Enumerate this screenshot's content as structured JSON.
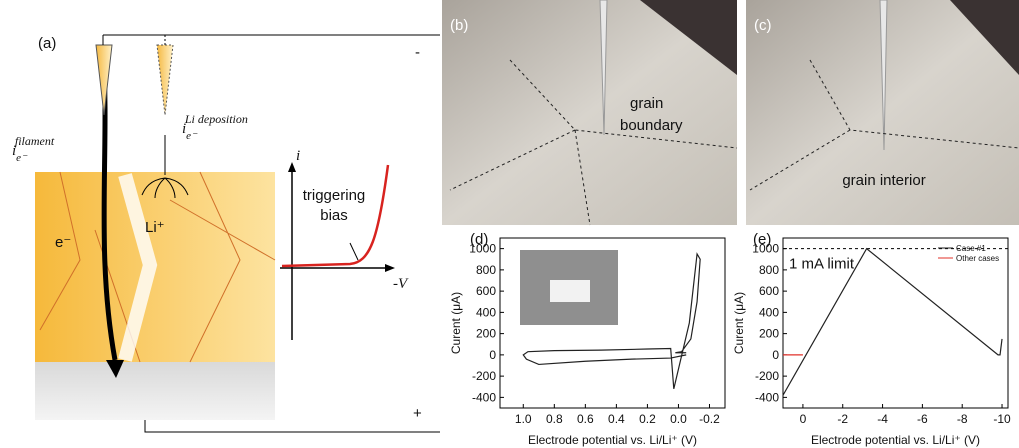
{
  "panel_a": {
    "label": "(a)",
    "current_symbol": "i",
    "electron_subscript": "e⁻",
    "filament_superscript": "filament",
    "deposition_superscript": "Li deposition",
    "electron": "e⁻",
    "lithium_ion": "Li⁺",
    "negative_terminal": "-",
    "positive_terminal": "+",
    "inset_y_label": "i",
    "inset_x_label": "-V",
    "inset_annotation_lines": [
      "triggering",
      "bias"
    ]
  },
  "panel_b": {
    "label": "(b)",
    "annotation_lines": [
      "grain",
      "boundary"
    ]
  },
  "panel_c": {
    "label": "(c)",
    "annotation": "grain interior"
  },
  "chart_data": [
    {
      "type": "line",
      "label": "(d)",
      "x_label": "Electrode potential vs. Li/Li⁺ (V)",
      "y_label": "Curent (μA)",
      "xlim": [
        1.15,
        -0.3
      ],
      "ylim": [
        -500,
        1100
      ],
      "xticks": [
        {
          "value": 1,
          "label": "1.0"
        },
        0.8,
        0.6,
        0.4,
        0.2,
        {
          "value": 0,
          "label": "0.0"
        },
        -0.2
      ],
      "yticks": [
        -400,
        -200,
        0,
        200,
        400,
        600,
        800,
        1000
      ],
      "series": [
        {
          "color": "#222222",
          "x": [
            -0.05,
            0.05,
            0.3,
            0.6,
            0.9,
            0.98,
            1.0,
            0.97,
            0.8,
            0.5,
            0.2,
            0.05,
            0.03,
            -0.07,
            -0.12,
            -0.14,
            -0.12,
            -0.08,
            -0.02,
            0.02,
            -0.05
          ],
          "values": [
            0,
            -30,
            -40,
            -60,
            -90,
            -40,
            0,
            30,
            40,
            45,
            55,
            60,
            -320,
            300,
            950,
            900,
            500,
            150,
            30,
            20,
            20
          ]
        }
      ]
    },
    {
      "type": "line",
      "label": "(e)",
      "x_label": "Electrode potential vs. Li/Li⁺ (V)",
      "y_label": "Curent (μA)",
      "xlim": [
        1,
        -10.3
      ],
      "ylim": [
        -500,
        1100
      ],
      "xticks": [
        0,
        -2,
        -4,
        -6,
        -8,
        -10
      ],
      "yticks": [
        -400,
        -200,
        0,
        200,
        400,
        600,
        800,
        1000
      ],
      "limit_line": 1000,
      "annotation": "1 mA limit",
      "series": [
        {
          "name": "Case #1",
          "color": "#222222",
          "x": [
            1,
            -3.2,
            -9.8,
            -9.9,
            -10
          ],
          "values": [
            -380,
            1000,
            0,
            0,
            150
          ]
        },
        {
          "name": "Other cases",
          "color": "#e0302a",
          "x": [
            1,
            0
          ],
          "values": [
            0,
            0
          ]
        }
      ]
    }
  ]
}
